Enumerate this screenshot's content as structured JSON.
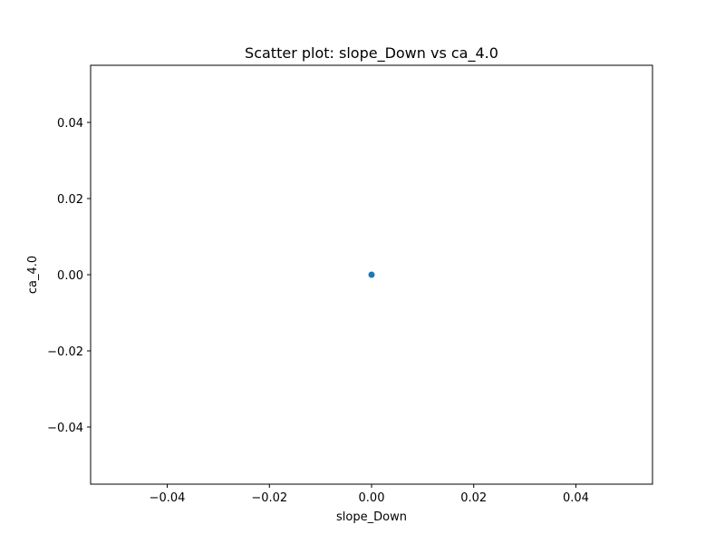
{
  "chart_data": {
    "type": "scatter",
    "title": "Scatter plot: slope_Down vs ca_4.0",
    "xlabel": "slope_Down",
    "ylabel": "ca_4.0",
    "xlim": [
      -0.055,
      0.055
    ],
    "ylim": [
      -0.055,
      0.055
    ],
    "xticks": [
      {
        "value": -0.04,
        "label": "−0.04"
      },
      {
        "value": -0.02,
        "label": "−0.02"
      },
      {
        "value": 0.0,
        "label": "0.00"
      },
      {
        "value": 0.02,
        "label": "0.02"
      },
      {
        "value": 0.04,
        "label": "0.04"
      }
    ],
    "yticks": [
      {
        "value": -0.04,
        "label": "−0.04"
      },
      {
        "value": -0.02,
        "label": "−0.02"
      },
      {
        "value": 0.0,
        "label": "0.00"
      },
      {
        "value": 0.02,
        "label": "0.02"
      },
      {
        "value": 0.04,
        "label": "0.04"
      }
    ],
    "grid": false,
    "series": [
      {
        "color": "#1f77b4",
        "points": [
          {
            "x": 0.0,
            "y": 0.0
          }
        ]
      }
    ]
  }
}
